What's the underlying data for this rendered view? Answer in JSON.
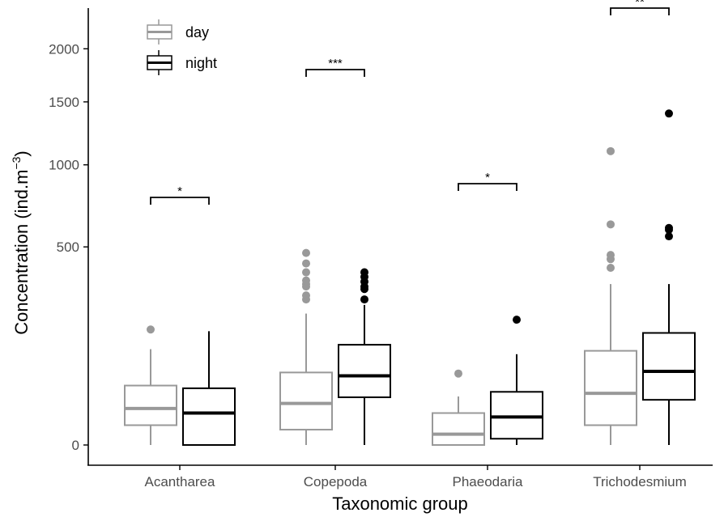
{
  "chart_data": {
    "type": "boxplot",
    "xlabel": "Taxonomic group",
    "ylabel": "Concentration (ind.m",
    "ylabel_superscript": "−3",
    "ylabel_close": ")",
    "yscale": "sqrt",
    "ylim": [
      0,
      2000
    ],
    "y_ticks": [
      0,
      500,
      1000,
      1500,
      2000
    ],
    "y_tick_labels": [
      "0",
      "500",
      "1000",
      "1500",
      "2000"
    ],
    "categories": [
      "Acantharea",
      "Copepoda",
      "Phaeodaria",
      "Trichodesmium"
    ],
    "legend": {
      "position": "top-left",
      "entries": [
        {
          "label": "day",
          "color": "#999999"
        },
        {
          "label": "night",
          "color": "#000000"
        }
      ]
    },
    "series": [
      {
        "name": "day",
        "color": "#999999",
        "boxes": [
          {
            "min": 0,
            "q1": 5,
            "median": 17,
            "q3": 45,
            "max": 117,
            "outliers": [
              170
            ]
          },
          {
            "min": 0,
            "q1": 3,
            "median": 22,
            "q3": 67,
            "max": 220,
            "outliers": [
              270,
              285,
              320,
              330,
              345,
              380,
              420,
              470
            ]
          },
          {
            "min": 0,
            "q1": 0,
            "median": 1.5,
            "q3": 13,
            "max": 30,
            "outliers": [
              65
            ]
          },
          {
            "min": 0,
            "q1": 5,
            "median": 34,
            "q3": 113,
            "max": 330,
            "outliers": [
              400,
              440,
              460,
              620,
              1100
            ]
          }
        ]
      },
      {
        "name": "night",
        "color": "#000000",
        "boxes": [
          {
            "min": 0,
            "q1": 0,
            "median": 13,
            "q3": 41,
            "max": 165,
            "outliers": []
          },
          {
            "min": 0,
            "q1": 29,
            "median": 61,
            "q3": 128,
            "max": 250,
            "outliers": [
              270,
              310,
              320,
              340,
              360,
              380
            ]
          },
          {
            "min": 0,
            "q1": 0.5,
            "median": 10,
            "q3": 36,
            "max": 105,
            "outliers": [
              200
            ]
          },
          {
            "min": 0,
            "q1": 26,
            "median": 69,
            "q3": 160,
            "max": 330,
            "outliers": [
              555,
              590,
              600,
              1400
            ]
          }
        ]
      }
    ],
    "significance": [
      {
        "category": "Acantharea",
        "label": "*"
      },
      {
        "category": "Copepoda",
        "label": "***"
      },
      {
        "category": "Phaeodaria",
        "label": "*"
      },
      {
        "category": "Trichodesmium",
        "label": "**"
      }
    ]
  }
}
